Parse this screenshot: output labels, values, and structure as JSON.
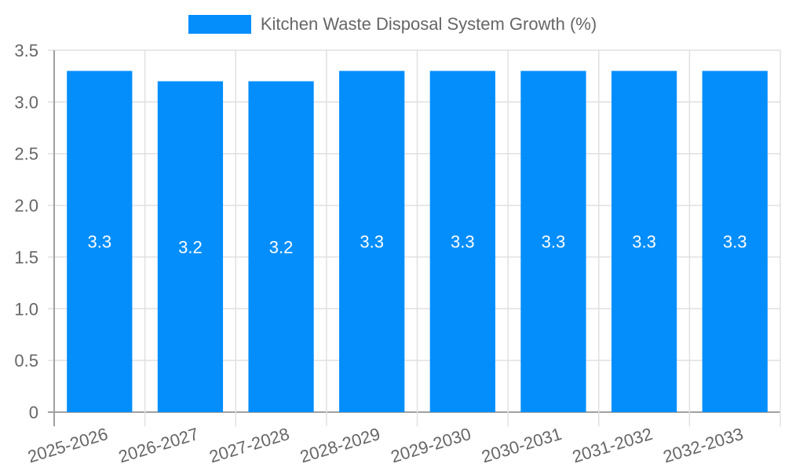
{
  "legend": {
    "label": "Kitchen Waste Disposal System Growth (%)",
    "color": "#038EFC"
  },
  "chart_data": {
    "type": "bar",
    "title": "",
    "xlabel": "",
    "ylabel": "",
    "categories": [
      "2025-2026",
      "2026-2027",
      "2027-2028",
      "2028-2029",
      "2029-2030",
      "2030-2031",
      "2031-2032",
      "2032-2033"
    ],
    "series": [
      {
        "name": "Kitchen Waste Disposal System Growth (%)",
        "values": [
          3.3,
          3.2,
          3.2,
          3.3,
          3.3,
          3.3,
          3.3,
          3.3
        ],
        "color": "#038EFC"
      }
    ],
    "data_labels": [
      "3.3",
      "3.2",
      "3.2",
      "3.3",
      "3.3",
      "3.3",
      "3.3",
      "3.3"
    ],
    "ylim": [
      0,
      3.5
    ],
    "yticks": [
      "0",
      "0.5",
      "1.0",
      "1.5",
      "2.0",
      "2.5",
      "3.0",
      "3.5"
    ],
    "grid": true,
    "legend_position": "top"
  }
}
